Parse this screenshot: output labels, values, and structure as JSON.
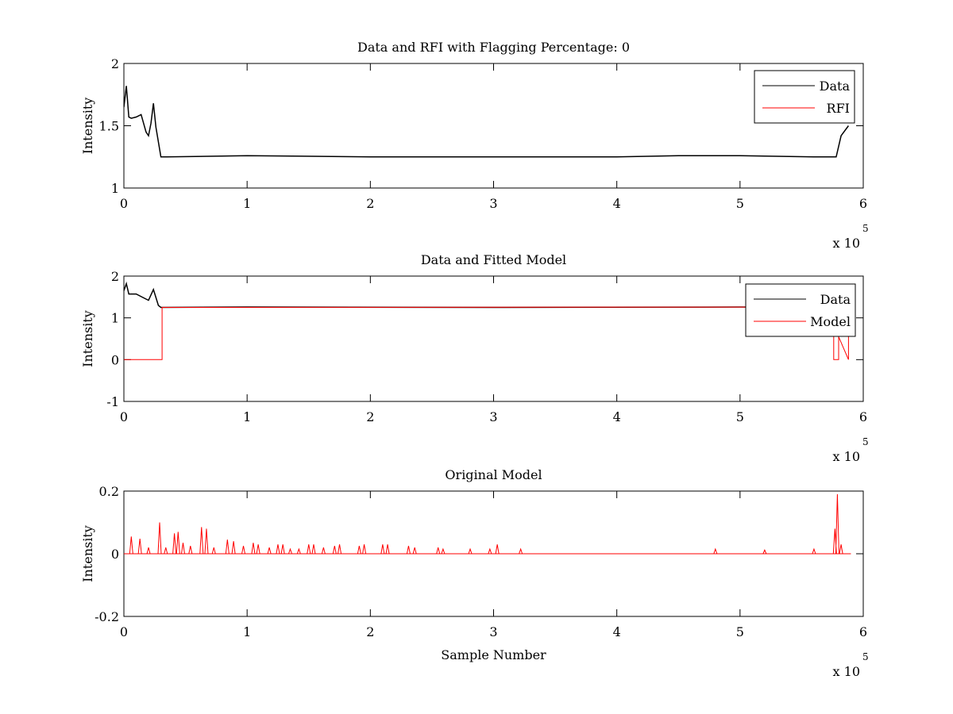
{
  "chart_data": [
    {
      "type": "line",
      "title": "Data and RFI with Flagging Percentage: 0",
      "xlabel": "",
      "ylabel": "Intensity",
      "xlim": [
        0,
        600000
      ],
      "ylim": [
        1,
        2
      ],
      "xticks": [
        0,
        1,
        2,
        3,
        4,
        5,
        6
      ],
      "yticks": [
        "1",
        "1.5",
        "2"
      ],
      "x_multiplier": "x 10",
      "x_exponent": "5",
      "grid": false,
      "legend_position": "top-right",
      "series": [
        {
          "name": "Data",
          "color": "#000000",
          "x": [
            0,
            2000,
            4000,
            6000,
            10000,
            14000,
            18000,
            20000,
            22000,
            24000,
            26000,
            30000,
            35000,
            100000,
            200000,
            300000,
            400000,
            450000,
            500000,
            560000,
            578000,
            582000,
            588000
          ],
          "y": [
            1.65,
            1.82,
            1.57,
            1.56,
            1.57,
            1.59,
            1.45,
            1.42,
            1.52,
            1.68,
            1.49,
            1.25,
            1.25,
            1.26,
            1.25,
            1.25,
            1.25,
            1.26,
            1.26,
            1.25,
            1.25,
            1.42,
            1.5
          ]
        },
        {
          "name": "RFI",
          "color": "#ff0000",
          "x": [],
          "y": []
        }
      ]
    },
    {
      "type": "line",
      "title": "Data and Fitted Model",
      "xlabel": "",
      "ylabel": "Intensity",
      "xlim": [
        0,
        600000
      ],
      "ylim": [
        -1,
        2
      ],
      "xticks": [
        0,
        1,
        2,
        3,
        4,
        5,
        6
      ],
      "yticks": [
        "-1",
        "0",
        "1",
        "2"
      ],
      "x_multiplier": "x 10",
      "x_exponent": "5",
      "grid": false,
      "legend_position": "top-right",
      "series": [
        {
          "name": "Data",
          "color": "#000000",
          "x": [
            0,
            2000,
            4000,
            10000,
            18000,
            20000,
            24000,
            28000,
            30000,
            100000,
            300000,
            500000,
            578000,
            582000,
            588000
          ],
          "y": [
            1.65,
            1.82,
            1.57,
            1.57,
            1.45,
            1.42,
            1.68,
            1.3,
            1.25,
            1.26,
            1.25,
            1.26,
            1.25,
            1.4,
            1.5
          ]
        },
        {
          "name": "Model",
          "color": "#ff0000",
          "x": [
            0,
            31000,
            31000,
            576000,
            576000,
            580000,
            580000,
            588000,
            588000
          ],
          "y": [
            0,
            0,
            1.25,
            1.26,
            0,
            0,
            0.55,
            0,
            0.55
          ]
        }
      ]
    },
    {
      "type": "line",
      "title": "Original Model",
      "xlabel": "Sample Number",
      "ylabel": "Intensity",
      "xlim": [
        0,
        600000
      ],
      "ylim": [
        -0.2,
        0.2
      ],
      "xticks": [
        0,
        1,
        2,
        3,
        4,
        5,
        6
      ],
      "yticks": [
        "-0.2",
        "0",
        "0.2"
      ],
      "x_multiplier": "x 10",
      "x_exponent": "5",
      "grid": false,
      "series": [
        {
          "name": "",
          "color": "#ff0000",
          "x": [
            6000,
            13000,
            20000,
            29000,
            34000,
            41000,
            44000,
            48000,
            54000,
            63000,
            67000,
            73000,
            84000,
            89000,
            97000,
            105000,
            109000,
            118000,
            125000,
            129000,
            135000,
            142000,
            150000,
            154000,
            162000,
            171000,
            175000,
            191000,
            195000,
            210000,
            214000,
            231000,
            236000,
            255000,
            259000,
            281000,
            297000,
            303000,
            322000,
            480000,
            520000,
            560000,
            577000,
            579000,
            582000
          ],
          "y": [
            0.055,
            0.048,
            0.02,
            0.1,
            0.02,
            0.065,
            0.07,
            0.035,
            0.025,
            0.085,
            0.08,
            0.02,
            0.045,
            0.04,
            0.025,
            0.035,
            0.03,
            0.02,
            0.03,
            0.03,
            0.015,
            0.015,
            0.03,
            0.03,
            0.02,
            0.025,
            0.03,
            0.025,
            0.03,
            0.03,
            0.03,
            0.025,
            0.02,
            0.02,
            0.015,
            0.015,
            0.015,
            0.03,
            0.015,
            0.015,
            0.012,
            0.015,
            0.08,
            0.19,
            0.03
          ]
        }
      ]
    }
  ]
}
